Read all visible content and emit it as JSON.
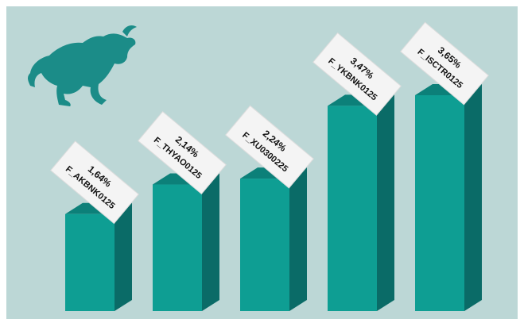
{
  "chart_data": {
    "type": "bar3d",
    "categories": [
      "F_AKBNK0125",
      "F_THYAO0125",
      "F_XU0300225",
      "F_YKBNK0125",
      "F_ISCTR0125"
    ],
    "values": [
      1.64,
      2.14,
      2.24,
      3.47,
      3.65
    ],
    "value_labels": [
      "1,64%",
      "2,14%",
      "2,24%",
      "3,47%",
      "3,65%"
    ],
    "color": "#0e9e93"
  }
}
